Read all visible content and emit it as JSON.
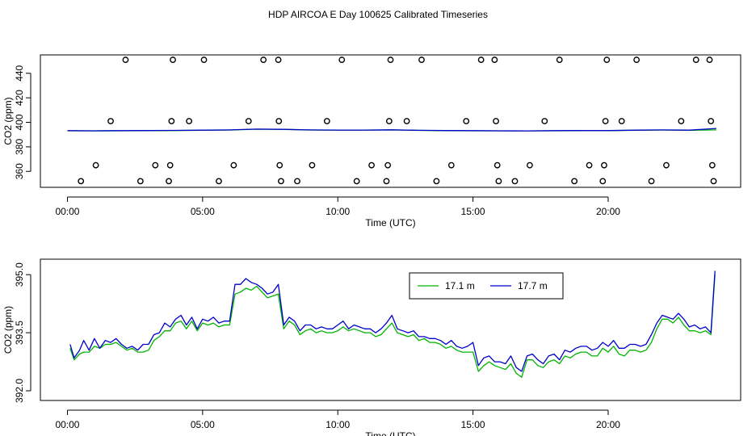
{
  "title": "HDP AIRCOA E  Day 100625  Calibrated Timeseries",
  "colors": {
    "green": "#00b300",
    "blue": "#0000cc",
    "axis": "#000000",
    "background": "#ffffff"
  },
  "chart_data": [
    {
      "type": "scatter",
      "title": "HDP AIRCOA E  Day 100625  Calibrated Timeseries",
      "xlabel": "Time (UTC)",
      "ylabel": "CO2 (ppm)",
      "xlim": [
        -1.0,
        24.9
      ],
      "ylim": [
        347,
        455
      ],
      "x_ticks": [
        0,
        5,
        10,
        15,
        20
      ],
      "x_tick_labels": [
        "00:00",
        "05:00",
        "10:00",
        "15:00",
        "20:00"
      ],
      "y_ticks": [
        360,
        380,
        400,
        420,
        440
      ],
      "y_tick_labels": [
        "360",
        "380",
        "400",
        "420",
        "440"
      ],
      "grid": false,
      "points": [
        [
          0.5,
          352
        ],
        [
          1.05,
          365
        ],
        [
          1.6,
          401
        ],
        [
          2.15,
          451
        ],
        [
          2.7,
          352
        ],
        [
          3.25,
          365
        ],
        [
          3.75,
          352
        ],
        [
          3.8,
          365
        ],
        [
          3.85,
          401
        ],
        [
          3.9,
          451
        ],
        [
          4.5,
          401
        ],
        [
          5.05,
          451
        ],
        [
          5.6,
          352
        ],
        [
          6.15,
          365
        ],
        [
          6.7,
          401
        ],
        [
          7.25,
          451
        ],
        [
          7.8,
          451
        ],
        [
          7.82,
          401
        ],
        [
          7.85,
          365
        ],
        [
          7.9,
          352
        ],
        [
          8.5,
          352
        ],
        [
          9.05,
          365
        ],
        [
          9.6,
          401
        ],
        [
          10.15,
          451
        ],
        [
          10.7,
          352
        ],
        [
          11.25,
          365
        ],
        [
          11.8,
          352
        ],
        [
          11.85,
          365
        ],
        [
          11.9,
          401
        ],
        [
          11.95,
          451
        ],
        [
          12.55,
          401
        ],
        [
          13.1,
          451
        ],
        [
          13.65,
          352
        ],
        [
          14.2,
          365
        ],
        [
          14.75,
          401
        ],
        [
          15.3,
          451
        ],
        [
          15.8,
          451
        ],
        [
          15.85,
          401
        ],
        [
          15.9,
          365
        ],
        [
          15.95,
          352
        ],
        [
          16.55,
          352
        ],
        [
          17.1,
          365
        ],
        [
          17.65,
          401
        ],
        [
          18.2,
          451
        ],
        [
          18.75,
          352
        ],
        [
          19.3,
          365
        ],
        [
          19.8,
          352
        ],
        [
          19.85,
          365
        ],
        [
          19.9,
          401
        ],
        [
          19.95,
          451
        ],
        [
          20.5,
          401
        ],
        [
          21.05,
          451
        ],
        [
          21.6,
          352
        ],
        [
          22.15,
          365
        ],
        [
          22.7,
          401
        ],
        [
          23.25,
          451
        ],
        [
          23.75,
          451
        ],
        [
          23.8,
          401
        ],
        [
          23.85,
          365
        ],
        [
          23.9,
          352
        ]
      ],
      "series": [
        {
          "color": "green",
          "start": 393.1,
          "end": 393.8,
          "x": [
            0,
            1,
            2,
            3,
            4,
            5,
            6,
            7,
            8,
            9,
            10,
            11,
            12,
            13,
            14,
            15,
            16,
            17,
            18,
            19,
            20,
            21,
            22,
            23,
            24
          ],
          "values": [
            393.1,
            393.0,
            393.1,
            393.2,
            393.3,
            393.5,
            393.7,
            394.4,
            394.2,
            393.7,
            393.6,
            393.6,
            393.8,
            393.4,
            393.2,
            393.1,
            393.0,
            393.0,
            393.1,
            393.2,
            393.2,
            393.5,
            393.7,
            393.5,
            393.8
          ]
        },
        {
          "color": "blue",
          "start": 393.2,
          "end": 395.0,
          "x": [
            0,
            1,
            2,
            3,
            4,
            5,
            6,
            7,
            8,
            9,
            10,
            11,
            12,
            13,
            14,
            15,
            16,
            17,
            18,
            19,
            20,
            21,
            22,
            23,
            24
          ],
          "values": [
            393.2,
            393.1,
            393.2,
            393.3,
            393.4,
            393.6,
            393.8,
            394.5,
            394.3,
            393.8,
            393.7,
            393.7,
            393.9,
            393.5,
            393.3,
            393.2,
            393.1,
            393.0,
            393.2,
            393.3,
            393.3,
            393.6,
            393.8,
            393.6,
            395.0
          ]
        }
      ]
    },
    {
      "type": "line",
      "xlabel": "Time (UTC)",
      "ylabel": "CO2 (ppm)",
      "xlim": [
        -1.0,
        24.9
      ],
      "ylim": [
        391.75,
        395.4
      ],
      "x_ticks": [
        0,
        5,
        10,
        15,
        20
      ],
      "x_tick_labels": [
        "00:00",
        "05:00",
        "10:00",
        "15:00",
        "20:00"
      ],
      "y_ticks": [
        392.0,
        393.5,
        395.0
      ],
      "y_tick_labels": [
        "392.0",
        "393.5",
        "395.0"
      ],
      "grid": false,
      "legend_position": "top-center",
      "series": [
        {
          "name": "17.1 m",
          "color": "green",
          "x": [
            0.1,
            0.25,
            0.45,
            0.6,
            0.8,
            1.0,
            1.2,
            1.4,
            1.6,
            1.8,
            2.0,
            2.2,
            2.4,
            2.6,
            2.8,
            3.0,
            3.2,
            3.4,
            3.6,
            3.8,
            4.0,
            4.2,
            4.4,
            4.6,
            4.8,
            5.0,
            5.2,
            5.4,
            5.6,
            5.8,
            6.0,
            6.2,
            6.4,
            6.6,
            6.8,
            7.0,
            7.2,
            7.4,
            7.6,
            7.8,
            8.0,
            8.2,
            8.4,
            8.6,
            8.8,
            9.0,
            9.2,
            9.4,
            9.6,
            9.8,
            10.0,
            10.2,
            10.4,
            10.6,
            10.8,
            11.0,
            11.2,
            11.4,
            11.6,
            11.8,
            12.0,
            12.2,
            12.4,
            12.6,
            12.8,
            13.0,
            13.2,
            13.4,
            13.6,
            13.8,
            14.0,
            14.2,
            14.4,
            14.6,
            14.8,
            15.0,
            15.2,
            15.4,
            15.6,
            15.8,
            16.0,
            16.2,
            16.4,
            16.6,
            16.8,
            17.0,
            17.2,
            17.4,
            17.6,
            17.8,
            18.0,
            18.2,
            18.4,
            18.6,
            18.8,
            19.0,
            19.2,
            19.4,
            19.6,
            19.8,
            20.0,
            20.2,
            20.4,
            20.6,
            20.8,
            21.0,
            21.2,
            21.4,
            21.6,
            21.8,
            22.0,
            22.2,
            22.4,
            22.6,
            22.8,
            23.0,
            23.2,
            23.4,
            23.6,
            23.8,
            23.95
          ],
          "values": [
            393.1,
            392.8,
            392.95,
            393.0,
            393.0,
            393.15,
            393.1,
            393.2,
            393.2,
            393.25,
            393.15,
            393.05,
            393.1,
            393.0,
            393.0,
            393.05,
            393.3,
            393.4,
            393.55,
            393.55,
            393.75,
            393.8,
            393.6,
            393.8,
            393.55,
            393.75,
            393.7,
            393.75,
            393.65,
            393.7,
            393.7,
            394.5,
            394.55,
            394.65,
            394.6,
            394.7,
            394.55,
            394.4,
            394.45,
            394.5,
            393.6,
            393.8,
            393.7,
            393.45,
            393.55,
            393.6,
            393.5,
            393.55,
            393.5,
            393.5,
            393.55,
            393.65,
            393.55,
            393.6,
            393.55,
            393.5,
            393.5,
            393.4,
            393.45,
            393.6,
            393.75,
            393.5,
            393.45,
            393.4,
            393.45,
            393.3,
            393.35,
            393.25,
            393.25,
            393.2,
            393.1,
            393.15,
            393.05,
            393.0,
            393.0,
            393.0,
            392.5,
            392.65,
            392.75,
            392.65,
            392.6,
            392.55,
            392.7,
            392.45,
            392.35,
            392.8,
            392.8,
            392.65,
            392.6,
            392.75,
            392.8,
            392.7,
            392.9,
            392.85,
            392.95,
            393.0,
            393.0,
            392.9,
            392.9,
            393.1,
            393.0,
            393.15,
            392.95,
            392.9,
            393.05,
            393.05,
            393.0,
            393.05,
            393.25,
            393.6,
            393.85,
            393.85,
            393.75,
            393.9,
            393.7,
            393.55,
            393.55,
            393.5,
            393.55,
            393.45,
            395.0
          ]
        },
        {
          "name": "17.7 m",
          "color": "blue",
          "x": [
            0.1,
            0.25,
            0.45,
            0.6,
            0.8,
            1.0,
            1.2,
            1.4,
            1.6,
            1.8,
            2.0,
            2.2,
            2.4,
            2.6,
            2.8,
            3.0,
            3.2,
            3.4,
            3.6,
            3.8,
            4.0,
            4.2,
            4.4,
            4.6,
            4.8,
            5.0,
            5.2,
            5.4,
            5.6,
            5.8,
            6.0,
            6.2,
            6.4,
            6.6,
            6.8,
            7.0,
            7.2,
            7.4,
            7.6,
            7.8,
            8.0,
            8.2,
            8.4,
            8.6,
            8.8,
            9.0,
            9.2,
            9.4,
            9.6,
            9.8,
            10.0,
            10.2,
            10.4,
            10.6,
            10.8,
            11.0,
            11.2,
            11.4,
            11.6,
            11.8,
            12.0,
            12.2,
            12.4,
            12.6,
            12.8,
            13.0,
            13.2,
            13.4,
            13.6,
            13.8,
            14.0,
            14.2,
            14.4,
            14.6,
            14.8,
            15.0,
            15.2,
            15.4,
            15.6,
            15.8,
            16.0,
            16.2,
            16.4,
            16.6,
            16.8,
            17.0,
            17.2,
            17.4,
            17.6,
            17.8,
            18.0,
            18.2,
            18.4,
            18.6,
            18.8,
            19.0,
            19.2,
            19.4,
            19.6,
            19.8,
            20.0,
            20.2,
            20.4,
            20.6,
            20.8,
            21.0,
            21.2,
            21.4,
            21.6,
            21.8,
            22.0,
            22.2,
            22.4,
            22.6,
            22.8,
            23.0,
            23.2,
            23.4,
            23.6,
            23.8,
            23.95
          ],
          "values": [
            393.2,
            392.85,
            393.05,
            393.3,
            393.05,
            393.35,
            393.1,
            393.3,
            393.25,
            393.35,
            393.2,
            393.1,
            393.15,
            393.05,
            393.2,
            393.2,
            393.45,
            393.5,
            393.75,
            393.65,
            393.85,
            393.95,
            393.7,
            393.9,
            393.6,
            393.85,
            393.8,
            393.9,
            393.75,
            393.8,
            393.8,
            394.75,
            394.75,
            394.9,
            394.8,
            394.75,
            394.65,
            394.5,
            394.55,
            394.75,
            393.7,
            393.9,
            393.8,
            393.55,
            393.7,
            393.7,
            393.6,
            393.65,
            393.6,
            393.6,
            393.7,
            393.8,
            393.6,
            393.7,
            393.65,
            393.6,
            393.6,
            393.5,
            393.6,
            393.75,
            393.95,
            393.6,
            393.55,
            393.5,
            393.55,
            393.4,
            393.4,
            393.35,
            393.35,
            393.3,
            393.2,
            393.3,
            393.15,
            393.1,
            393.15,
            393.25,
            392.65,
            392.85,
            392.9,
            392.75,
            392.75,
            392.7,
            392.9,
            392.6,
            392.5,
            392.9,
            392.95,
            392.8,
            392.7,
            392.9,
            392.95,
            392.8,
            393.05,
            393.0,
            393.1,
            393.15,
            393.15,
            393.05,
            393.1,
            393.25,
            393.15,
            393.3,
            393.1,
            393.1,
            393.2,
            393.2,
            393.15,
            393.2,
            393.45,
            393.75,
            393.95,
            393.9,
            393.85,
            394.0,
            393.85,
            393.65,
            393.7,
            393.6,
            393.65,
            393.5,
            395.1
          ]
        }
      ]
    }
  ]
}
